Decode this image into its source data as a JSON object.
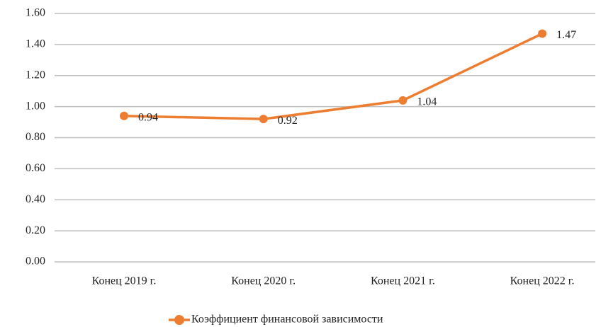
{
  "chart_data": {
    "type": "line",
    "categories": [
      "Конец 2019 г.",
      "Конец 2020 г.",
      "Конец 2021 г.",
      "Конец 2022 г."
    ],
    "series": [
      {
        "name": "Коэффициент финансовой зависимости",
        "color": "#ed7d31",
        "values": [
          0.94,
          0.92,
          1.04,
          1.47
        ]
      }
    ],
    "ylim": [
      0,
      1.6
    ],
    "yticks": [
      {
        "value": 0,
        "label": "0.00"
      },
      {
        "value": 0.2,
        "label": "0.20"
      },
      {
        "value": 0.4,
        "label": "0.40"
      },
      {
        "value": 0.6,
        "label": "0.60"
      },
      {
        "value": 0.8,
        "label": "0.80"
      },
      {
        "value": 1,
        "label": "1.00"
      },
      {
        "value": 1.2,
        "label": "1.20"
      },
      {
        "value": 1.4,
        "label": "1.40"
      },
      {
        "value": 1.6,
        "label": "1.60"
      }
    ],
    "grid": true,
    "legend": "bottom"
  }
}
